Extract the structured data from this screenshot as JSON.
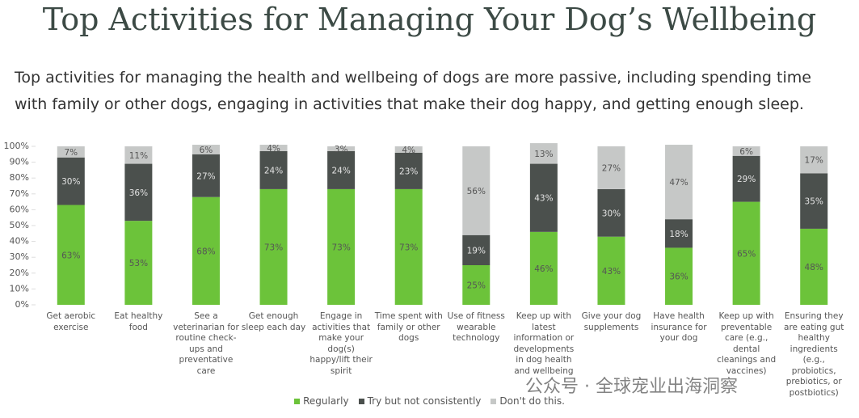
{
  "chart_data": {
    "type": "stacked-bar",
    "title": "Top Activities for Managing Your Dog’s Wellbeing",
    "subtitle": "Top activities for managing the health and wellbeing of dogs are more passive, including spending time with family or other dogs, engaging in activities that make their dog happy, and getting enough sleep.",
    "categories": [
      "Get aerobic exercise",
      "Eat healthy food",
      "See a veterinarian for routine check-ups and preventative care",
      "Get enough sleep each day",
      "Engage in activities that make your dog(s) happy/lift their spirit",
      "Time spent with family or other dogs",
      "Use of fitness wearable technology",
      "Keep up with latest information or developments in dog health and wellbeing",
      "Give your dog supplements",
      "Have health insurance for your dog",
      "Keep up with preventable care (e.g., dental cleanings and vaccines)",
      "Ensuring they are eating gut healthy ingredients (e.g., probiotics, prebiotics, or postbiotics)"
    ],
    "series": [
      {
        "name": "Regularly",
        "color": "#6cc33a",
        "values": [
          63,
          53,
          68,
          73,
          73,
          73,
          25,
          46,
          43,
          36,
          65,
          48
        ],
        "value_labels": [
          "63%",
          "53%",
          "68%",
          "73%",
          "73%",
          "73%",
          "25%",
          "46%",
          "43%",
          "36%",
          "65%",
          "48%"
        ]
      },
      {
        "name": "Try but not consistently",
        "color": "#4b504d",
        "values": [
          30,
          36,
          27,
          24,
          24,
          23,
          19,
          43,
          30,
          18,
          29,
          35
        ],
        "value_labels": [
          "30%",
          "36%",
          "27%",
          "24%",
          "24%",
          "23%",
          "19%",
          "43%",
          "30%",
          "18%",
          "29%",
          "35%"
        ]
      },
      {
        "name": "Don't do this.",
        "color": "#c6c8c7",
        "values": [
          7,
          11,
          6,
          4,
          3,
          4,
          56,
          13,
          27,
          47,
          6,
          17
        ],
        "value_labels": [
          "7%",
          "11%",
          "6%",
          "4%",
          "3%",
          "4%",
          "56%",
          "13%",
          "27%",
          "47%",
          "6%",
          "17%"
        ]
      }
    ],
    "ylim": [
      0,
      100
    ],
    "yticks": [
      {
        "value": 0,
        "label": "0%"
      },
      {
        "value": 10,
        "label": "10%"
      },
      {
        "value": 20,
        "label": "20%"
      },
      {
        "value": 30,
        "label": "30%"
      },
      {
        "value": 40,
        "label": "40%"
      },
      {
        "value": 50,
        "label": "50%"
      },
      {
        "value": 60,
        "label": "60%"
      },
      {
        "value": 70,
        "label": "70%"
      },
      {
        "value": 80,
        "label": "80%"
      },
      {
        "value": 90,
        "label": "90%"
      },
      {
        "value": 100,
        "label": "100%"
      }
    ],
    "grid": false,
    "legend": "bottom",
    "watermark": "公众号 · 全球宠业出海洞察"
  }
}
